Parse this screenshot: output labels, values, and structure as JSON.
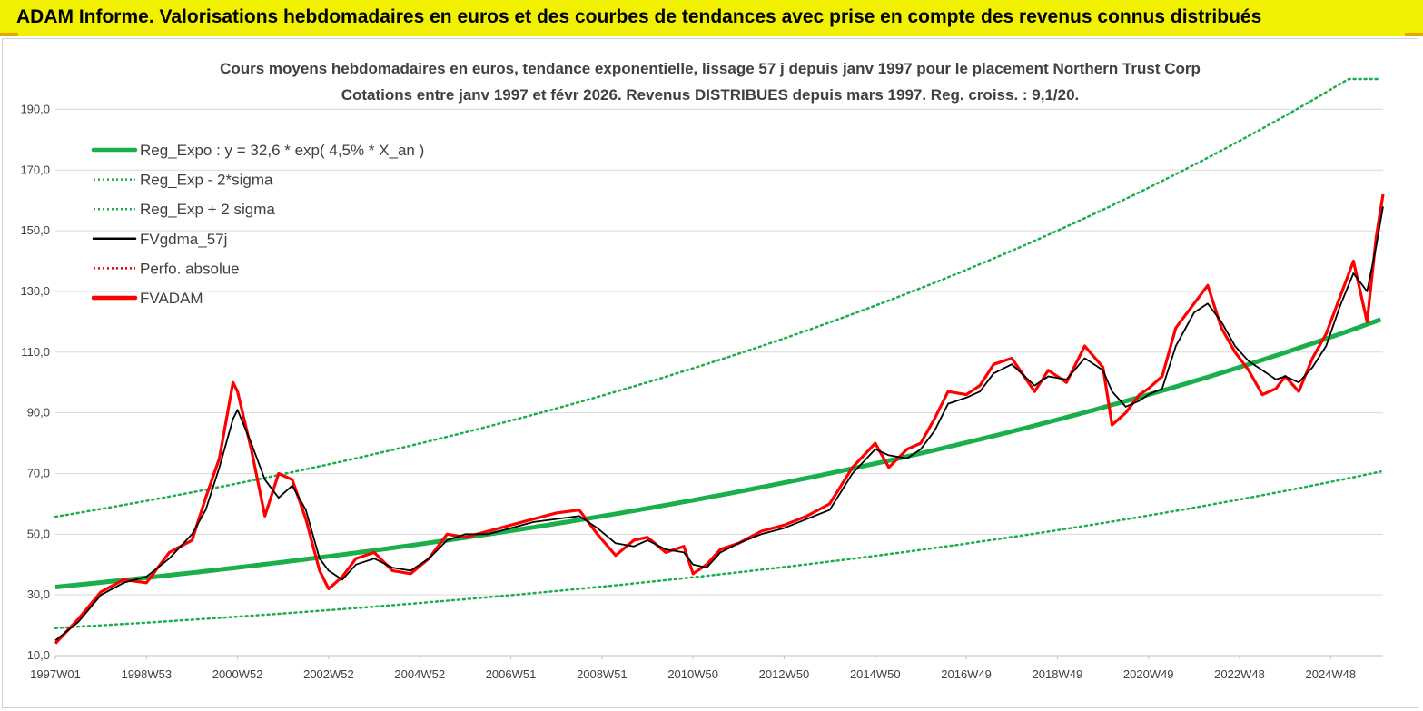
{
  "header": {
    "title": "ADAM Informe. Valorisations hebdomadaires en euros et des courbes de tendances avec prise en compte des revenus connus distribués"
  },
  "chart_data": {
    "type": "line",
    "title_line1": "Cours moyens hebdomadaires en euros, tendance exponentielle, lissage 57 j depuis janv 1997 pour le placement Northern Trust Corp",
    "title_line2": "Cotations entre janv 1997 et févr 2026. Revenus DISTRIBUES depuis mars 1997. Reg. croiss. : 9,1/20.",
    "xlabel": "",
    "ylabel": "",
    "xlim": [
      1997.0,
      2026.15
    ],
    "ylim": [
      10,
      200
    ],
    "grid": true,
    "y_ticks": [
      "10,0",
      "30,0",
      "50,0",
      "70,0",
      "90,0",
      "110,0",
      "130,0",
      "150,0",
      "170,0",
      "190,0"
    ],
    "y_tick_values": [
      10,
      30,
      50,
      70,
      90,
      110,
      130,
      150,
      170,
      190
    ],
    "x_ticks": [
      "1997W01",
      "1998W53",
      "2000W52",
      "2002W52",
      "2004W52",
      "2006W51",
      "2008W51",
      "2010W50",
      "2012W50",
      "2014W50",
      "2016W49",
      "2018W49",
      "2020W49",
      "2022W48",
      "2024W48"
    ],
    "x_tick_values": [
      1997.0,
      1999.0,
      2001.0,
      2003.0,
      2005.0,
      2007.0,
      2009.0,
      2011.0,
      2013.0,
      2015.0,
      2017.0,
      2019.0,
      2021.0,
      2023.0,
      2025.0
    ],
    "legend": {
      "placement": "top-left",
      "entries": [
        {
          "label": "Reg_Expo : y = 32,6 * exp( 4,5% *  X_an )",
          "color": "#1aaf4b",
          "style": "solid-thick"
        },
        {
          "label": "Reg_Exp - 2*sigma",
          "color": "#1aaf4b",
          "style": "dotted"
        },
        {
          "label": "Reg_Exp + 2 sigma",
          "color": "#1aaf4b",
          "style": "dotted"
        },
        {
          "label": "FVgdma_57j",
          "color": "#000000",
          "style": "solid"
        },
        {
          "label": "Perfo. absolue",
          "color": "#e00000",
          "style": "dotted"
        },
        {
          "label": "FVADAM",
          "color": "#ff0000",
          "style": "solid-thick"
        }
      ]
    },
    "regression": {
      "a": 32.6,
      "b": 0.045,
      "x0": 1997.0,
      "minus_2_sigma_factor": 0.585,
      "plus_2_sigma_factor": 1.71,
      "plus_cap": 200
    },
    "series": [
      {
        "name": "FVgdma_57j",
        "color": "#000000",
        "x": [
          1997.0,
          1997.5,
          1998.0,
          1998.5,
          1999.0,
          1999.5,
          2000.0,
          2000.3,
          2000.6,
          2000.9,
          2001.0,
          2001.3,
          2001.6,
          2001.9,
          2002.2,
          2002.5,
          2002.8,
          2003.0,
          2003.3,
          2003.6,
          2004.0,
          2004.4,
          2004.8,
          2005.2,
          2005.6,
          2006.0,
          2006.5,
          2007.0,
          2007.5,
          2008.0,
          2008.5,
          2008.9,
          2009.3,
          2009.7,
          2010.0,
          2010.4,
          2010.8,
          2011.0,
          2011.3,
          2011.6,
          2012.0,
          2012.5,
          2013.0,
          2013.5,
          2014.0,
          2014.5,
          2015.0,
          2015.3,
          2015.7,
          2016.0,
          2016.3,
          2016.6,
          2017.0,
          2017.3,
          2017.6,
          2018.0,
          2018.5,
          2018.8,
          2019.2,
          2019.6,
          2020.0,
          2020.2,
          2020.5,
          2020.8,
          2021.0,
          2021.3,
          2021.6,
          2022.0,
          2022.3,
          2022.6,
          2022.9,
          2023.2,
          2023.5,
          2023.8,
          2024.0,
          2024.3,
          2024.6,
          2024.9,
          2025.2,
          2025.5,
          2025.8,
          2026.0,
          2026.15
        ],
        "values": [
          15,
          21,
          30,
          34,
          36,
          42,
          50,
          58,
          72,
          88,
          91,
          80,
          68,
          62,
          66,
          58,
          42,
          38,
          35,
          40,
          42,
          39,
          38,
          42,
          48,
          50,
          50,
          52,
          54,
          55,
          56,
          52,
          47,
          46,
          48,
          45,
          44,
          40,
          39,
          44,
          47,
          50,
          52,
          55,
          58,
          70,
          78,
          76,
          75,
          78,
          84,
          93,
          95,
          97,
          103,
          106,
          99,
          102,
          101,
          108,
          104,
          97,
          92,
          94,
          96,
          98,
          112,
          123,
          126,
          120,
          112,
          107,
          104,
          101,
          102,
          100,
          105,
          112,
          125,
          136,
          130,
          145,
          158
        ]
      },
      {
        "name": "FVADAM",
        "color": "#ff0000",
        "x": [
          1997.0,
          1997.5,
          1998.0,
          1998.5,
          1999.0,
          1999.5,
          2000.0,
          2000.3,
          2000.6,
          2000.9,
          2001.0,
          2001.3,
          2001.6,
          2001.9,
          2002.2,
          2002.5,
          2002.8,
          2003.0,
          2003.3,
          2003.6,
          2004.0,
          2004.4,
          2004.8,
          2005.2,
          2005.6,
          2006.0,
          2006.5,
          2007.0,
          2007.5,
          2008.0,
          2008.5,
          2008.9,
          2009.3,
          2009.7,
          2010.0,
          2010.4,
          2010.8,
          2011.0,
          2011.3,
          2011.6,
          2012.0,
          2012.5,
          2013.0,
          2013.5,
          2014.0,
          2014.5,
          2015.0,
          2015.3,
          2015.7,
          2016.0,
          2016.3,
          2016.6,
          2017.0,
          2017.3,
          2017.6,
          2018.0,
          2018.5,
          2018.8,
          2019.2,
          2019.6,
          2020.0,
          2020.2,
          2020.5,
          2020.8,
          2021.0,
          2021.3,
          2021.6,
          2022.0,
          2022.3,
          2022.6,
          2022.9,
          2023.2,
          2023.5,
          2023.8,
          2024.0,
          2024.3,
          2024.6,
          2024.9,
          2025.2,
          2025.5,
          2025.8,
          2026.0,
          2026.15
        ],
        "values": [
          14,
          22,
          31,
          35,
          34,
          44,
          48,
          62,
          75,
          100,
          97,
          78,
          56,
          70,
          68,
          55,
          38,
          32,
          36,
          42,
          44,
          38,
          37,
          42,
          50,
          49,
          51,
          53,
          55,
          57,
          58,
          50,
          43,
          48,
          49,
          44,
          46,
          37,
          40,
          45,
          47,
          51,
          53,
          56,
          60,
          72,
          80,
          72,
          78,
          80,
          88,
          97,
          96,
          99,
          106,
          108,
          97,
          104,
          100,
          112,
          105,
          86,
          90,
          96,
          98,
          102,
          118,
          126,
          132,
          118,
          110,
          104,
          96,
          98,
          102,
          97,
          108,
          116,
          128,
          140,
          120,
          148,
          162
        ]
      }
    ]
  }
}
